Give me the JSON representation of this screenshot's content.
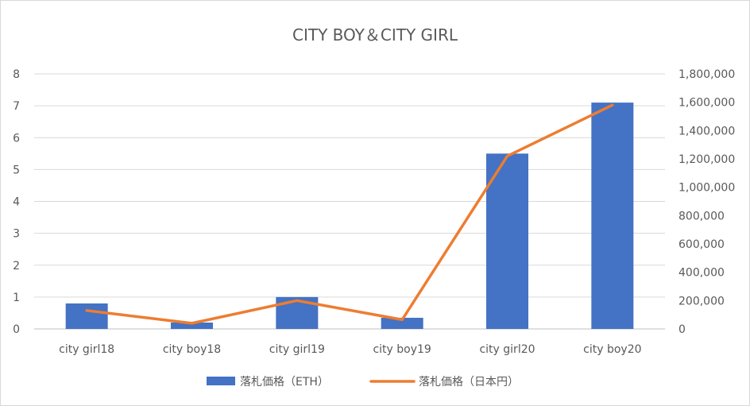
{
  "chart_data": {
    "type": "bar+line",
    "title": "CITY BOY＆CITY GIRL",
    "categories": [
      "city girl18",
      "city boy18",
      "city girl19",
      "city boy19",
      "city girl20",
      "city boy20"
    ],
    "series": [
      {
        "name": "落札価格（ETH）",
        "type": "bar",
        "axis": "left",
        "color": "#4472C4",
        "values": [
          0.8,
          0.2,
          1.0,
          0.35,
          5.5,
          7.1
        ]
      },
      {
        "name": "落札価格（日本円）",
        "type": "line",
        "axis": "right",
        "color": "#ED7D31",
        "values": [
          130000,
          40000,
          200000,
          65000,
          1220000,
          1580000
        ]
      }
    ],
    "y_left": {
      "min": 0,
      "max": 8,
      "step": 1,
      "ticks": [
        "0",
        "1",
        "2",
        "3",
        "4",
        "5",
        "6",
        "7",
        "8"
      ]
    },
    "y_right": {
      "min": 0,
      "max": 1800000,
      "step": 200000,
      "ticks": [
        "0",
        "200,000",
        "400,000",
        "600,000",
        "800,000",
        "1,000,000",
        "1,200,000",
        "1,400,000",
        "1,600,000",
        "1,800,000"
      ]
    },
    "grid": true,
    "legend_position": "bottom"
  }
}
